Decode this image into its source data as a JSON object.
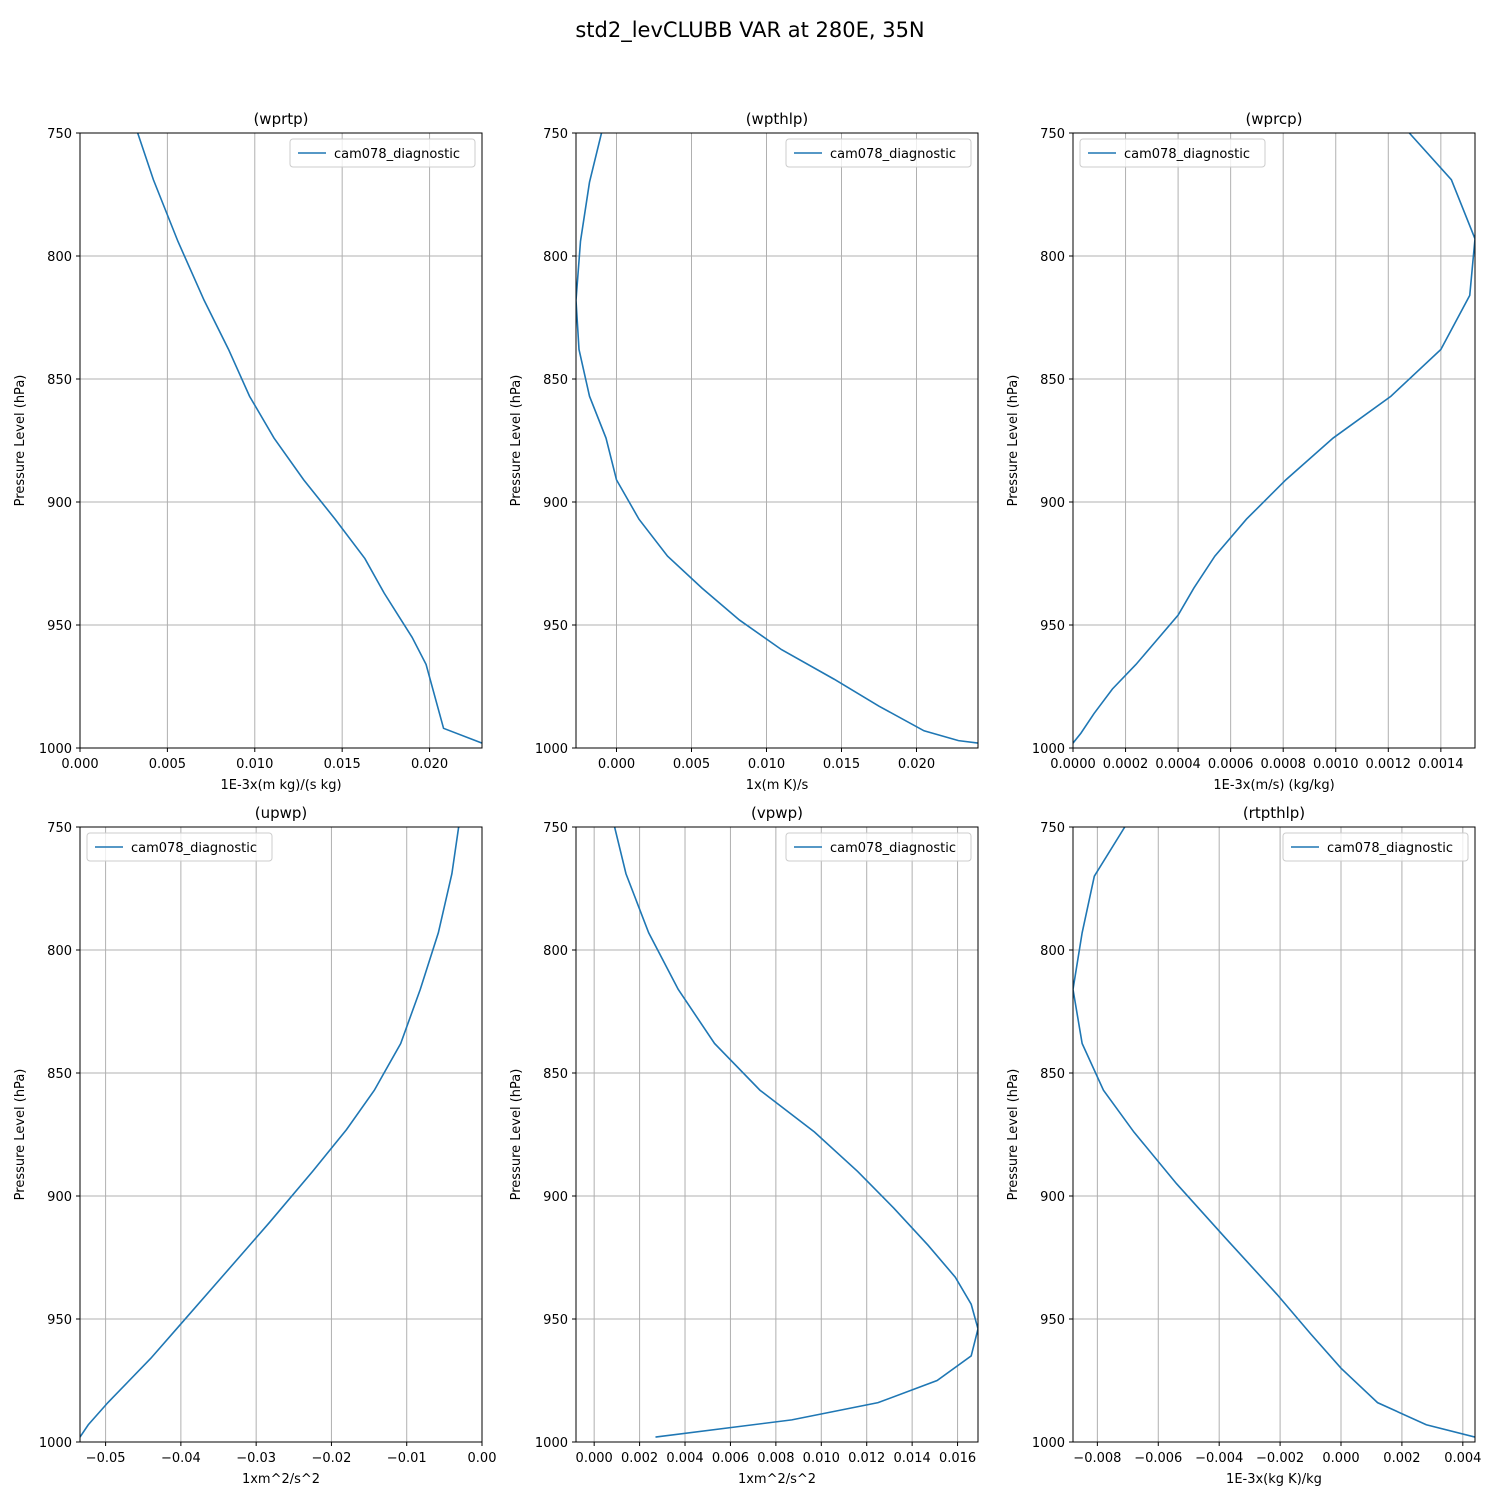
{
  "figure": {
    "title": "std2_levCLUBB VAR at 280E, 35N",
    "line_color": "#1f77b4",
    "grid_color": "#b0b0b0"
  },
  "chart_data": [
    {
      "type": "line",
      "title": "(wprtp)",
      "xlabel": "1E-3x(m kg)/(s kg)",
      "ylabel": "Pressure Level (hPa)",
      "xlim": [
        0.0,
        0.023
      ],
      "ylim": [
        1000,
        750
      ],
      "xticks": [
        0.0,
        0.005,
        0.01,
        0.015,
        0.02
      ],
      "xtick_labels": [
        "0.000",
        "0.005",
        "0.010",
        "0.015",
        "0.020"
      ],
      "yticks": [
        750,
        800,
        850,
        900,
        950,
        1000
      ],
      "ytick_labels": [
        "750",
        "800",
        "850",
        "900",
        "950",
        "1000"
      ],
      "legend_position": "top-right",
      "grid": true,
      "series": [
        {
          "name": "cam078_diagnostic",
          "x": [
            0.0033,
            0.0042,
            0.0056,
            0.0071,
            0.0085,
            0.0097,
            0.0111,
            0.0128,
            0.0146,
            0.0163,
            0.0174,
            0.0182,
            0.019,
            0.0198,
            0.0208,
            0.023
          ],
          "y": [
            750,
            769,
            794,
            818,
            838,
            857,
            874,
            891,
            907,
            923,
            937,
            946,
            955,
            966,
            992,
            998
          ]
        }
      ]
    },
    {
      "type": "line",
      "title": "(wpthlp)",
      "xlabel": "1x(m K)/s",
      "ylabel": "Pressure Level (hPa)",
      "xlim": [
        -0.0027,
        0.0241
      ],
      "ylim": [
        1000,
        750
      ],
      "xticks": [
        0.0,
        0.005,
        0.01,
        0.015,
        0.02
      ],
      "xtick_labels": [
        "0.000",
        "0.005",
        "0.010",
        "0.015",
        "0.020"
      ],
      "yticks": [
        750,
        800,
        850,
        900,
        950,
        1000
      ],
      "ytick_labels": [
        "750",
        "800",
        "850",
        "900",
        "950",
        "1000"
      ],
      "legend_position": "top-right",
      "grid": true,
      "series": [
        {
          "name": "cam078_diagnostic",
          "x": [
            -0.001,
            -0.0018,
            -0.0024,
            -0.0027,
            -0.0025,
            -0.0018,
            -0.0007,
            0.0,
            0.0015,
            0.0034,
            0.0057,
            0.0082,
            0.011,
            0.0145,
            0.0175,
            0.0205,
            0.0228,
            0.0241
          ],
          "y": [
            750,
            770,
            794,
            818,
            838,
            857,
            874,
            891,
            907,
            922,
            935,
            948,
            960,
            972,
            983,
            993,
            997,
            998
          ]
        }
      ]
    },
    {
      "type": "line",
      "title": "(wprcp)",
      "xlabel": "1E-3x(m/s) (kg/kg)",
      "ylabel": "Pressure Level (hPa)",
      "xlim": [
        0.0,
        0.00153
      ],
      "ylim": [
        1000,
        750
      ],
      "xticks": [
        0.0,
        0.0002,
        0.0004,
        0.0006,
        0.0008,
        0.001,
        0.0012,
        0.0014
      ],
      "xtick_labels": [
        "0.0000",
        "0.0002",
        "0.0004",
        "0.0006",
        "0.0008",
        "0.0010",
        "0.0012",
        "0.0014"
      ],
      "yticks": [
        750,
        800,
        850,
        900,
        950,
        1000
      ],
      "ytick_labels": [
        "750",
        "800",
        "850",
        "900",
        "950",
        "1000"
      ],
      "legend_position": "top-left",
      "grid": true,
      "series": [
        {
          "name": "cam078_diagnostic",
          "x": [
            0.00128,
            0.00144,
            0.00153,
            0.00151,
            0.0014,
            0.00121,
            0.00099,
            0.00081,
            0.00066,
            0.00054,
            0.00046,
            0.0004,
            0.00032,
            0.00024,
            0.00015,
            8e-05,
            3e-05,
            0.0
          ],
          "y": [
            750,
            769,
            793,
            816,
            838,
            857,
            874,
            891,
            907,
            922,
            935,
            946,
            956,
            966,
            976,
            986,
            994,
            998
          ]
        }
      ]
    },
    {
      "type": "line",
      "title": "(upwp)",
      "xlabel": "1xm^2/s^2",
      "ylabel": "Pressure Level (hPa)",
      "xlim": [
        -0.0534,
        0.0
      ],
      "ylim": [
        1000,
        750
      ],
      "xticks": [
        -0.05,
        -0.04,
        -0.03,
        -0.02,
        -0.01,
        0.0
      ],
      "xtick_labels": [
        "−0.05",
        "−0.04",
        "−0.03",
        "−0.02",
        "−0.01",
        "0.00"
      ],
      "yticks": [
        750,
        800,
        850,
        900,
        950,
        1000
      ],
      "ytick_labels": [
        "750",
        "800",
        "850",
        "900",
        "950",
        "1000"
      ],
      "legend_position": "top-left",
      "grid": true,
      "series": [
        {
          "name": "cam078_diagnostic",
          "x": [
            -0.0031,
            -0.004,
            -0.0058,
            -0.0082,
            -0.0108,
            -0.0143,
            -0.018,
            -0.0225,
            -0.0283,
            -0.034,
            -0.04,
            -0.044,
            -0.0497,
            -0.0523,
            -0.0534
          ],
          "y": [
            750,
            769,
            793,
            816,
            838,
            857,
            873,
            890,
            911,
            931,
            952,
            966,
            984,
            993,
            998
          ]
        }
      ]
    },
    {
      "type": "line",
      "title": "(vpwp)",
      "xlabel": "1xm^2/s^2",
      "ylabel": "Pressure Level (hPa)",
      "xlim": [
        -0.0008,
        0.0169
      ],
      "ylim": [
        1000,
        750
      ],
      "xticks": [
        0.0,
        0.002,
        0.004,
        0.006,
        0.008,
        0.01,
        0.012,
        0.014,
        0.016
      ],
      "xtick_labels": [
        "0.000",
        "0.002",
        "0.004",
        "0.006",
        "0.008",
        "0.010",
        "0.012",
        "0.014",
        "0.016"
      ],
      "yticks": [
        750,
        800,
        850,
        900,
        950,
        1000
      ],
      "ytick_labels": [
        "750",
        "800",
        "850",
        "900",
        "950",
        "1000"
      ],
      "legend_position": "top-right",
      "grid": true,
      "series": [
        {
          "name": "cam078_diagnostic",
          "x": [
            0.0009,
            0.0014,
            0.0024,
            0.0037,
            0.0053,
            0.0073,
            0.0097,
            0.0116,
            0.0132,
            0.0147,
            0.0159,
            0.0166,
            0.0169,
            0.0166,
            0.0151,
            0.0125,
            0.0087,
            0.0027
          ],
          "y": [
            750,
            769,
            793,
            816,
            838,
            857,
            874,
            890,
            905,
            920,
            933,
            944,
            954,
            965,
            975,
            984,
            991,
            998
          ]
        }
      ]
    },
    {
      "type": "line",
      "title": "(rtpthlp)",
      "xlabel": "1E-3x(kg K)/kg",
      "ylabel": "Pressure Level (hPa)",
      "xlim": [
        -0.0088,
        0.0044
      ],
      "ylim": [
        1000,
        750
      ],
      "xticks": [
        -0.008,
        -0.006,
        -0.004,
        -0.002,
        0.0,
        0.002,
        0.004
      ],
      "xtick_labels": [
        "−0.008",
        "−0.006",
        "−0.004",
        "−0.002",
        "0.000",
        "0.002",
        "0.004"
      ],
      "yticks": [
        750,
        800,
        850,
        900,
        950,
        1000
      ],
      "ytick_labels": [
        "750",
        "800",
        "850",
        "900",
        "950",
        "1000"
      ],
      "legend_position": "top-right",
      "grid": true,
      "series": [
        {
          "name": "cam078_diagnostic",
          "x": [
            -0.0071,
            -0.0081,
            -0.0085,
            -0.0088,
            -0.0085,
            -0.0078,
            -0.0068,
            -0.0054,
            -0.0038,
            -0.0021,
            -0.001,
            0.0,
            0.0012,
            0.0028,
            0.0044
          ],
          "y": [
            750,
            770,
            793,
            816,
            838,
            857,
            874,
            895,
            917,
            940,
            956,
            970,
            984,
            993,
            998
          ]
        }
      ]
    }
  ]
}
